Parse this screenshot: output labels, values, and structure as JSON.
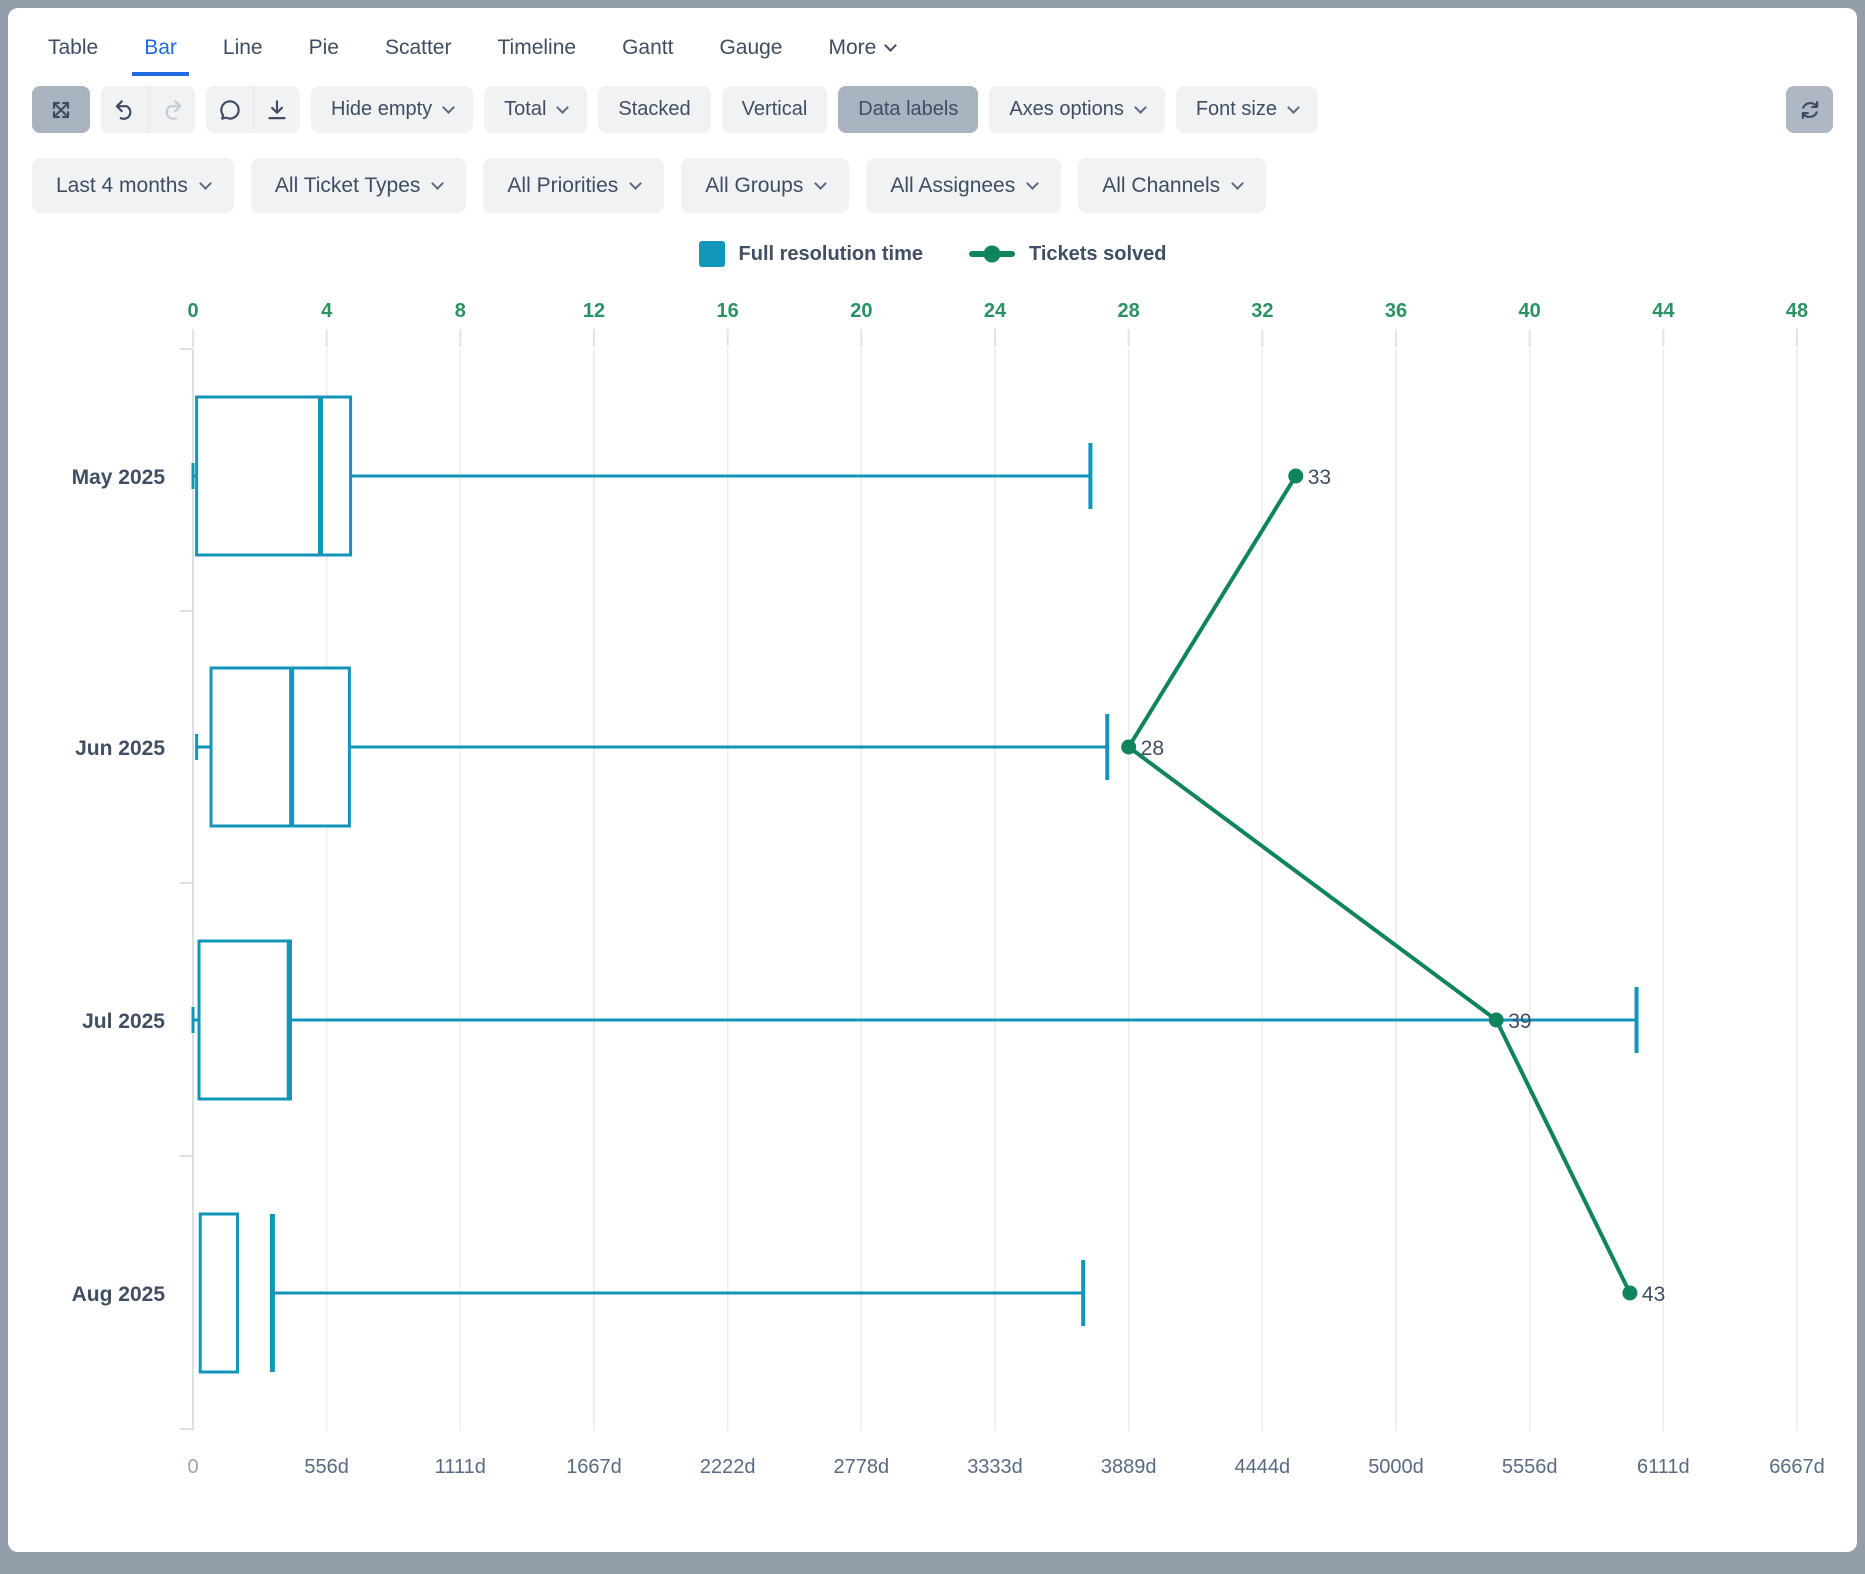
{
  "tabs": {
    "active": "Bar",
    "items": [
      {
        "label": "Table"
      },
      {
        "label": "Bar"
      },
      {
        "label": "Line"
      },
      {
        "label": "Pie"
      },
      {
        "label": "Scatter"
      },
      {
        "label": "Timeline"
      },
      {
        "label": "Gantt"
      },
      {
        "label": "Gauge"
      },
      {
        "label": "More",
        "dropdown": true
      }
    ]
  },
  "toolbar": {
    "expand": {
      "icon": "expand-icon",
      "active": true
    },
    "history": [
      {
        "icon": "undo-icon",
        "disabled": false
      },
      {
        "icon": "redo-icon",
        "disabled": true
      }
    ],
    "annotate": [
      {
        "icon": "comment-icon",
        "disabled": false
      },
      {
        "icon": "download-icon",
        "disabled": false
      }
    ],
    "buttons": [
      {
        "label": "Hide empty",
        "dropdown": true
      },
      {
        "label": "Total",
        "dropdown": true
      },
      {
        "label": "Stacked"
      },
      {
        "label": "Vertical"
      },
      {
        "label": "Data labels",
        "active": true
      },
      {
        "label": "Axes options",
        "dropdown": true
      },
      {
        "label": "Font size",
        "dropdown": true
      }
    ],
    "refresh": {
      "icon": "refresh-icon"
    }
  },
  "filters": [
    {
      "label": "Last 4 months"
    },
    {
      "label": "All Ticket Types"
    },
    {
      "label": "All Priorities"
    },
    {
      "label": "All Groups"
    },
    {
      "label": "All Assignees"
    },
    {
      "label": "All Channels"
    }
  ],
  "legend": [
    {
      "label": "Full resolution time",
      "marker": "square",
      "color": "#1196ba"
    },
    {
      "label": "Tickets solved",
      "marker": "line-dot",
      "color": "#10845c"
    }
  ],
  "chart_data": {
    "type": "box-and-line",
    "orientation": "horizontal",
    "grid": true,
    "categories": [
      "May 2025",
      "Jun 2025",
      "Jul 2025",
      "Aug 2025"
    ],
    "box_series": {
      "name": "Full resolution time",
      "unit": "days",
      "color": "#1196ba",
      "axis": "bottom",
      "values": [
        {
          "min": 0,
          "q1": 15,
          "median": 530,
          "q3": 655,
          "max": 3730
        },
        {
          "min": 15,
          "q1": 75,
          "median": 410,
          "q3": 650,
          "max": 3800
        },
        {
          "min": 0,
          "q1": 25,
          "median": 400,
          "q3": 405,
          "max": 6000
        },
        {
          "min": 30,
          "q1": 30,
          "median": 330,
          "q3": 185,
          "max": 3700
        }
      ]
    },
    "line_series": {
      "name": "Tickets solved",
      "color": "#10845c",
      "axis": "top",
      "values": [
        33,
        28,
        39,
        43
      ],
      "data_labels": [
        "33",
        "28",
        "39",
        "43"
      ],
      "label_color": "#3f4d63"
    },
    "top_axis": {
      "min": 0,
      "max": 48,
      "ticks": [
        0,
        4,
        8,
        12,
        16,
        20,
        24,
        28,
        32,
        36,
        40,
        44,
        48
      ],
      "color": "#2b9263"
    },
    "bottom_axis": {
      "min": 0,
      "max": 6667,
      "tick_labels": [
        "0",
        "556d",
        "1111d",
        "1667d",
        "2222d",
        "2778d",
        "3333d",
        "3889d",
        "4444d",
        "5000d",
        "5556d",
        "6111d",
        "6667d"
      ],
      "color": "#5a6a80",
      "zero_color": "#9aa4b0"
    },
    "category_color": "#414e63"
  }
}
